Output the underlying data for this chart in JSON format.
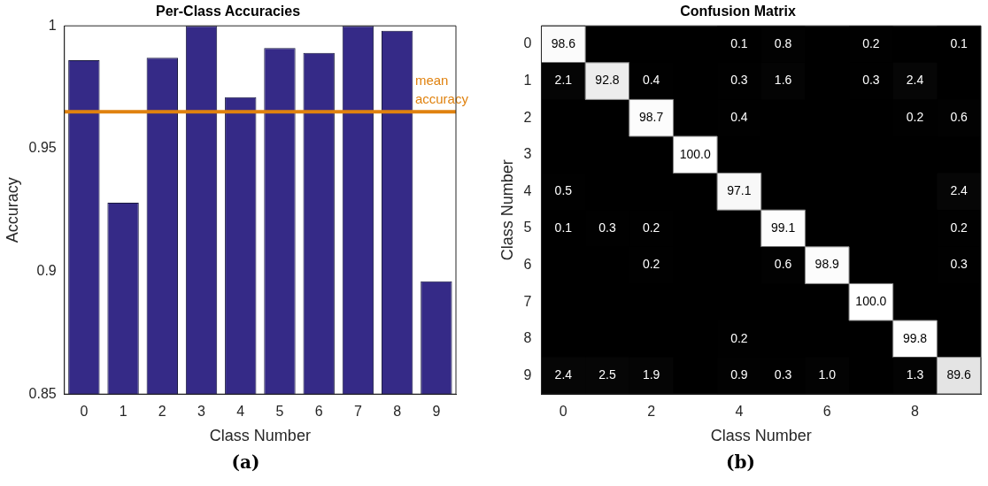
{
  "chart_data": [
    {
      "type": "bar",
      "title": "Per-Class Accuracies",
      "xlabel": "Class Number",
      "ylabel": "Accuracy",
      "categories": [
        "0",
        "1",
        "2",
        "3",
        "4",
        "5",
        "6",
        "7",
        "8",
        "9"
      ],
      "values": [
        0.986,
        0.928,
        0.987,
        1.0,
        0.971,
        0.991,
        0.989,
        1.0,
        0.998,
        0.896
      ],
      "color": "#352a87",
      "ylim": [
        0.85,
        1
      ],
      "yticks": [
        0.85,
        0.9,
        0.95,
        1
      ],
      "ref_lines": [
        {
          "axis": "y",
          "value": 0.965,
          "label": "mean accuracy",
          "color": "#e0820f"
        }
      ],
      "annotations": [
        "(a)"
      ]
    },
    {
      "type": "heatmap",
      "title": "Confusion Matrix",
      "xlabel": "Class Number",
      "ylabel": "Class Number",
      "categories": [
        "0",
        null,
        "2",
        null,
        "4",
        null,
        "6",
        null,
        "8",
        null
      ],
      "y_categories": [
        "0",
        "1",
        "2",
        "3",
        "4",
        "5",
        "6",
        "7",
        "8",
        "9"
      ],
      "cells": [
        [
          98.6,
          null,
          null,
          null,
          0.1,
          0.8,
          null,
          0.2,
          null,
          0.1
        ],
        [
          2.1,
          92.8,
          0.4,
          null,
          0.3,
          1.6,
          null,
          0.3,
          2.4,
          null
        ],
        [
          null,
          null,
          98.7,
          null,
          0.4,
          null,
          null,
          null,
          0.2,
          0.6
        ],
        [
          null,
          null,
          null,
          100.0,
          null,
          null,
          null,
          null,
          null,
          null
        ],
        [
          0.5,
          null,
          null,
          null,
          97.1,
          null,
          null,
          null,
          null,
          2.4
        ],
        [
          0.1,
          0.3,
          0.2,
          null,
          null,
          99.1,
          null,
          null,
          null,
          0.2
        ],
        [
          null,
          null,
          0.2,
          null,
          null,
          0.6,
          98.9,
          null,
          null,
          0.3
        ],
        [
          null,
          null,
          null,
          null,
          null,
          null,
          null,
          100.0,
          null,
          null
        ],
        [
          null,
          null,
          null,
          null,
          0.2,
          null,
          null,
          null,
          99.8,
          null
        ],
        [
          2.4,
          2.5,
          1.9,
          null,
          0.9,
          0.3,
          1.0,
          null,
          1.3,
          89.6
        ]
      ],
      "cell_labels": [
        [
          "98.6",
          null,
          null,
          null,
          "0.1",
          "0.8",
          null,
          "0.2",
          null,
          "0.1"
        ],
        [
          "2.1",
          "92.8",
          "0.4",
          null,
          "0.3",
          "1.6",
          null,
          "0.3",
          "2.4",
          null
        ],
        [
          null,
          null,
          "98.7",
          null,
          "0.4",
          null,
          null,
          null,
          "0.2",
          "0.6"
        ],
        [
          null,
          null,
          null,
          "100.0",
          null,
          null,
          null,
          null,
          null,
          null
        ],
        [
          "0.5",
          null,
          null,
          null,
          "97.1",
          null,
          null,
          null,
          null,
          "2.4"
        ],
        [
          "0.1",
          "0.3",
          "0.2",
          null,
          null,
          "99.1",
          null,
          null,
          null,
          "0.2"
        ],
        [
          null,
          null,
          "0.2",
          null,
          null,
          "0.6",
          "98.9",
          null,
          null,
          "0.3"
        ],
        [
          null,
          null,
          null,
          null,
          null,
          null,
          null,
          "100.0",
          null,
          null
        ],
        [
          null,
          null,
          null,
          null,
          "0.2",
          null,
          null,
          null,
          "99.8",
          null
        ],
        [
          "2.4",
          "2.5",
          "1.9",
          null,
          "0.9",
          "0.3",
          "1.0",
          null,
          "1.3",
          "89.6"
        ]
      ],
      "annotations": [
        "(b)"
      ]
    }
  ]
}
